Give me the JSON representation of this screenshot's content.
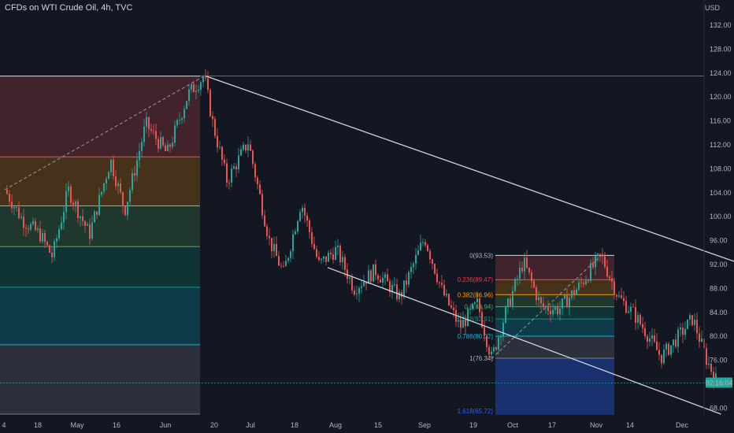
{
  "header": {
    "title": "CFDs on WTI Crude Oil, 4h, TVC",
    "currency": "USD"
  },
  "colors": {
    "background": "#131722",
    "up": "#26a69a",
    "down": "#ef5350",
    "price_tag": "#26a69a",
    "channel_line": "#d1d4dc"
  },
  "chart_data": {
    "type": "line",
    "symbol": "CFDs on WTI Crude Oil",
    "interval": "4h",
    "source": "TVC",
    "currency": "USD",
    "y_ticks": [
      "68.00",
      "72.00",
      "76.00",
      "80.00",
      "84.00",
      "88.00",
      "92.00",
      "96.00",
      "100.00",
      "104.00",
      "108.00",
      "112.00",
      "116.00",
      "120.00",
      "124.00",
      "128.00",
      "132.00"
    ],
    "ylim": [
      67,
      135
    ],
    "x_ticks": [
      "4",
      "18",
      "May",
      "16",
      "Jun",
      "20",
      "Jul",
      "18",
      "Aug",
      "15",
      "Sep",
      "19",
      "Oct",
      "17",
      "Nov",
      "14",
      "Dec"
    ],
    "current_price_label": "02:16:04",
    "current_price": 72.2,
    "price_path": [
      {
        "x": 0.0,
        "y": 104.5
      },
      {
        "x": 0.5,
        "y": 99.5
      },
      {
        "x": 1.0,
        "y": 97.0
      },
      {
        "x": 1.35,
        "y": 93.3
      },
      {
        "x": 1.8,
        "y": 104.5
      },
      {
        "x": 2.4,
        "y": 97.0
      },
      {
        "x": 3.0,
        "y": 109.5
      },
      {
        "x": 3.4,
        "y": 101.0
      },
      {
        "x": 4.0,
        "y": 115.5
      },
      {
        "x": 4.6,
        "y": 110.5
      },
      {
        "x": 5.2,
        "y": 120.5
      },
      {
        "x": 5.65,
        "y": 123.5
      },
      {
        "x": 5.9,
        "y": 115.5
      },
      {
        "x": 6.3,
        "y": 106.0
      },
      {
        "x": 6.9,
        "y": 112.5
      },
      {
        "x": 7.5,
        "y": 96.0
      },
      {
        "x": 7.9,
        "y": 90.5
      },
      {
        "x": 8.4,
        "y": 102.5
      },
      {
        "x": 8.9,
        "y": 92.0
      },
      {
        "x": 9.4,
        "y": 94.5
      },
      {
        "x": 9.9,
        "y": 88.0
      },
      {
        "x": 10.5,
        "y": 91.0
      },
      {
        "x": 11.2,
        "y": 86.5
      },
      {
        "x": 11.9,
        "y": 96.5
      },
      {
        "x": 12.4,
        "y": 87.5
      },
      {
        "x": 12.9,
        "y": 81.5
      },
      {
        "x": 13.4,
        "y": 85.5
      },
      {
        "x": 13.8,
        "y": 76.3
      },
      {
        "x": 14.2,
        "y": 84.0
      },
      {
        "x": 14.7,
        "y": 92.5
      },
      {
        "x": 15.2,
        "y": 85.0
      },
      {
        "x": 15.7,
        "y": 84.5
      },
      {
        "x": 16.3,
        "y": 88.5
      },
      {
        "x": 16.9,
        "y": 93.5
      },
      {
        "x": 17.4,
        "y": 86.5
      },
      {
        "x": 17.8,
        "y": 84.0
      },
      {
        "x": 18.2,
        "y": 80.5
      },
      {
        "x": 18.6,
        "y": 76.5
      },
      {
        "x": 19.1,
        "y": 80.0
      },
      {
        "x": 19.5,
        "y": 83.0
      },
      {
        "x": 19.9,
        "y": 76.0
      },
      {
        "x": 20.2,
        "y": 72.2
      }
    ],
    "fib_first": {
      "levels": [
        123.5,
        110.0,
        101.8,
        95.0,
        88.2,
        78.6,
        67.0
      ],
      "zone_colors": [
        "rgba(239,83,80,0.22)",
        "rgba(255,152,0,0.22)",
        "rgba(76,175,80,0.22)",
        "rgba(8,153,129,0.22)",
        "rgba(0,188,212,0.22)",
        "rgba(120,123,134,0.25)"
      ],
      "line_colors": [
        "#d1d4dc",
        "#ef5350",
        "#ff9800",
        "#4caf50",
        "#089981",
        "#00bcd4",
        "#787b86"
      ]
    },
    "fib_second": {
      "labels": [
        "0(93.53)",
        "0.236(89.47)",
        "0.382(86.96)",
        "0.5(84.94)",
        "0.618(82.91)",
        "0.786(80.02)",
        "1(76.34)",
        "1.618(65.72)"
      ],
      "levels": [
        93.53,
        89.47,
        86.96,
        84.94,
        82.91,
        80.02,
        76.34,
        65.72
      ],
      "label_colors": [
        "#b2b5be",
        "#f23645",
        "#ff9800",
        "#4caf50",
        "#089981",
        "#00bcd4",
        "#b2b5be",
        "#2962ff"
      ],
      "zone_colors": [
        "rgba(239,83,80,0.22)",
        "rgba(255,152,0,0.22)",
        "rgba(76,175,80,0.22)",
        "rgba(8,153,129,0.22)",
        "rgba(0,188,212,0.22)",
        "rgba(120,123,134,0.25)",
        "rgba(41,98,255,0.35)"
      ],
      "line_colors": [
        "#d1d4dc",
        "#ef5350",
        "#ff9800",
        "#4caf50",
        "#089981",
        "#00bcd4",
        "#787b86",
        "#2962ff"
      ]
    },
    "channel": {
      "upper": [
        {
          "x": 5.7,
          "y": 123.5
        },
        {
          "x": 23.1,
          "y": 87.5
        }
      ],
      "lower": [
        {
          "x": 9.15,
          "y": 91.5
        },
        {
          "x": 20.3,
          "y": 67.0
        }
      ]
    }
  }
}
